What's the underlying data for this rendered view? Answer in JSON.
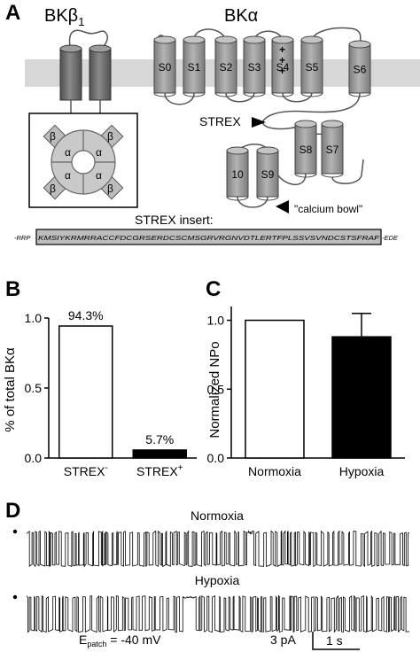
{
  "panel_a": {
    "panel_label": "A",
    "subunit_beta": "BKβ",
    "subunit_beta_sub": "1",
    "subunit_alpha": "BKα",
    "segments": [
      "S0",
      "S1",
      "S2",
      "S3",
      "S4",
      "S5",
      "S6",
      "S9",
      "10",
      "S8",
      "S7"
    ],
    "s4_charges": [
      "+",
      "+",
      "+"
    ],
    "tetramer_alpha": [
      "α",
      "α",
      "α",
      "α"
    ],
    "tetramer_beta": [
      "β",
      "β",
      "β",
      "β"
    ],
    "strex_label": "STREX",
    "calcium_bowl_label": "\"calcium bowl\"",
    "strex_insert_title": "STREX insert:",
    "seq_prefix": "-RRP",
    "seq_insert": "KMSIYKRMRRACCFDCGRSERDCSCMSGRVRGNVDTLERTFPLSSVSVNDCSTSFRAF",
    "seq_suffix": "-EDE"
  },
  "panel_b": {
    "panel_label": "B",
    "chart_data": {
      "type": "bar",
      "ylabel": "% of total BKα",
      "ylim": [
        0,
        1.0
      ],
      "yticks": [
        "0.0",
        "0.5",
        "1.0"
      ],
      "categories": [
        "STREX-",
        "STREX+"
      ],
      "category_display": [
        {
          "base": "STREX",
          "sup": "-"
        },
        {
          "base": "STREX",
          "sup": "+"
        }
      ],
      "values": [
        0.943,
        0.057
      ],
      "data_labels": [
        "94.3%",
        "5.7%"
      ],
      "colors": [
        "#ffffff",
        "#000000"
      ]
    }
  },
  "panel_c": {
    "panel_label": "C",
    "chart_data": {
      "type": "bar",
      "ylabel": "Normalized NPo",
      "ylim": [
        0,
        1.1
      ],
      "yticks": [
        "0.0",
        "0.5",
        "1.0"
      ],
      "categories": [
        "Normoxia",
        "Hypoxia"
      ],
      "values": [
        1.0,
        0.88
      ],
      "errors": [
        0,
        0.17
      ],
      "colors": [
        "#ffffff",
        "#000000"
      ]
    }
  },
  "panel_d": {
    "panel_label": "D",
    "traces": [
      {
        "label": "Normoxia"
      },
      {
        "label": "Hypoxia"
      }
    ],
    "potential_label": "E",
    "potential_sub": "patch",
    "potential_value": " = -40 mV",
    "scale_current": "3 pA",
    "scale_time": "1 s"
  },
  "colors": {
    "membrane": "#d7d7d7",
    "segment_fill": "#9a9a9a",
    "beta_segment_fill": "#6a6a6a",
    "strex_box": "#bdbdbd"
  }
}
